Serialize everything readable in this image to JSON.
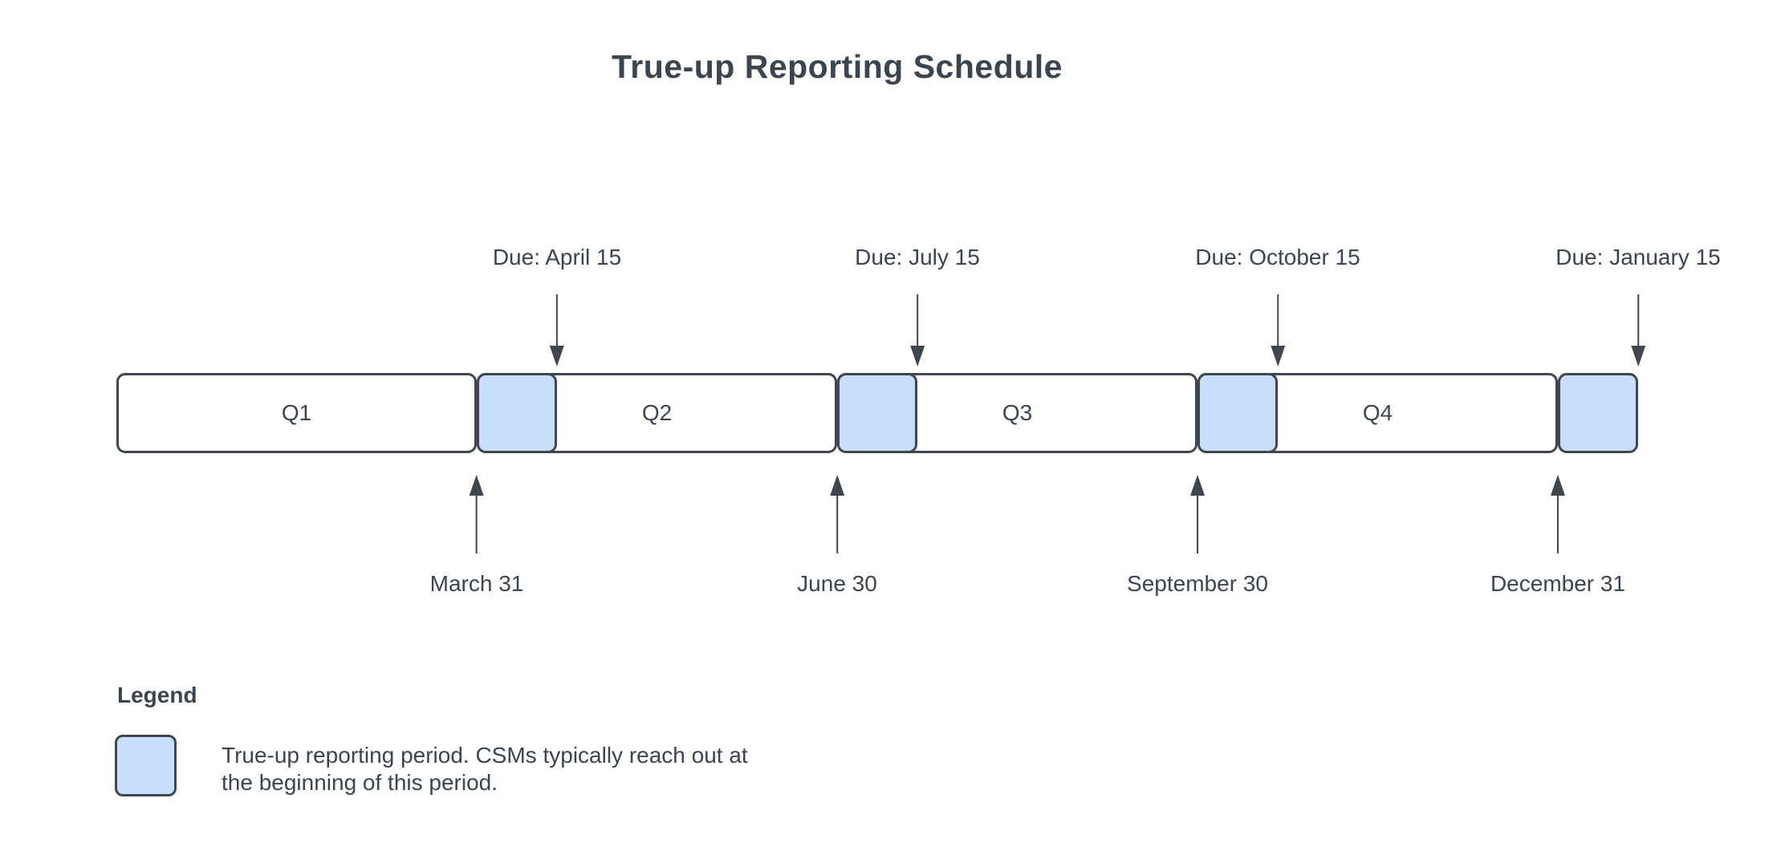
{
  "title": "True-up Reporting Schedule",
  "colors": {
    "period_fill": "#c8defb",
    "outline": "#3f4650",
    "text": "#3b4550"
  },
  "timeline": {
    "quarters": [
      {
        "label": "Q1",
        "end_date": "March 31",
        "due_date": "Due: April 15"
      },
      {
        "label": "Q2",
        "end_date": "June 30",
        "due_date": "Due: July 15"
      },
      {
        "label": "Q3",
        "end_date": "September 30",
        "due_date": "Due: October 15"
      },
      {
        "label": "Q4",
        "end_date": "December 31",
        "due_date": "Due: January 15"
      }
    ]
  },
  "legend": {
    "heading": "Legend",
    "items": [
      {
        "swatch": "true-up-period-swatch",
        "text": "True-up reporting period. CSMs typically reach out at the beginning of this period."
      }
    ]
  }
}
